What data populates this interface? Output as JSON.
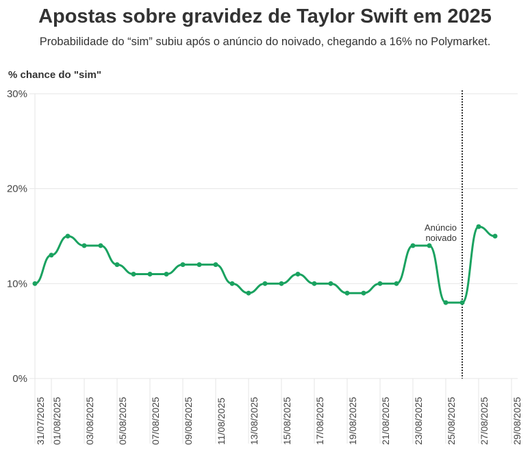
{
  "chart_data": {
    "type": "line",
    "title": "Apostas sobre gravidez de Taylor Swift em 2025",
    "subtitle": "Probabilidade do “sim” subiu após o anúncio do noivado, chegando a 16% no Polymarket.",
    "ylabel": "% chance do \"sim\"",
    "xlabel": "",
    "ylim": [
      0,
      30
    ],
    "yticks": [
      "0%",
      "10%",
      "20%",
      "30%"
    ],
    "ytick_values": [
      0,
      10,
      20,
      30
    ],
    "xticks": [
      "31/07/2025",
      "01/08/2025",
      "03/08/2025",
      "05/08/2025",
      "07/08/2025",
      "09/08/2025",
      "11/08/2025",
      "13/08/2025",
      "15/08/2025",
      "17/08/2025",
      "19/08/2025",
      "21/08/2025",
      "23/08/2025",
      "25/08/2025",
      "27/08/2025",
      "29/08/2025"
    ],
    "xtick_day_index": [
      0,
      1,
      3,
      5,
      7,
      9,
      11,
      13,
      15,
      17,
      19,
      21,
      23,
      25,
      27,
      29
    ],
    "x": [
      "31/07/2025",
      "01/08/2025",
      "02/08/2025",
      "03/08/2025",
      "04/08/2025",
      "05/08/2025",
      "06/08/2025",
      "07/08/2025",
      "08/08/2025",
      "09/08/2025",
      "10/08/2025",
      "11/08/2025",
      "12/08/2025",
      "13/08/2025",
      "14/08/2025",
      "15/08/2025",
      "16/08/2025",
      "17/08/2025",
      "18/08/2025",
      "19/08/2025",
      "20/08/2025",
      "21/08/2025",
      "22/08/2025",
      "23/08/2025",
      "24/08/2025",
      "25/08/2025",
      "26/08/2025",
      "27/08/2025",
      "28/08/2025"
    ],
    "values": [
      10,
      13,
      15,
      14,
      14,
      12,
      11,
      11,
      11,
      12,
      12,
      12,
      10,
      9,
      10,
      10,
      11,
      10,
      10,
      9,
      9,
      10,
      10,
      14,
      14,
      8,
      8,
      16,
      15
    ],
    "annotation": {
      "x": "26/08/2025",
      "text_lines": [
        "Anúncio",
        "noivado"
      ]
    },
    "grid": "horizontal",
    "color": "#1aa260"
  }
}
